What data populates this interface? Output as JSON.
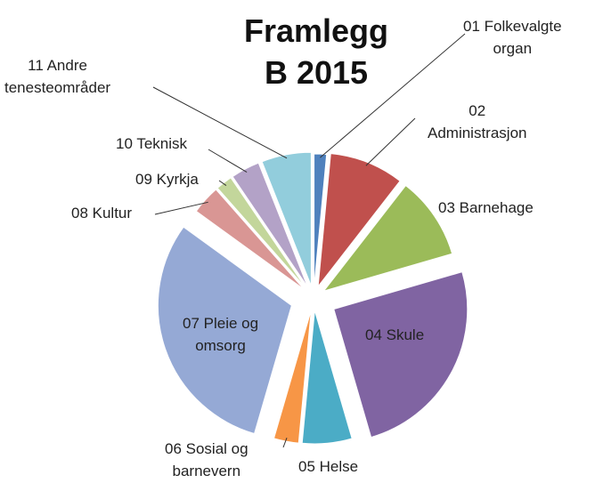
{
  "chart_data": {
    "type": "pie",
    "title": "Framlegg\nB 2015",
    "categories": [
      "01 Folkevalgte\norgan",
      "02\nAdministrasjon",
      "03 Barnehage",
      "04 Skule",
      "05 Helse",
      "06 Sosial og\nbarnevern",
      "07 Pleie og\nomsorg",
      "08 Kultur",
      "09 Kyrkja",
      "10 Teknisk",
      "11 Andre\ntenesteområder"
    ],
    "values": [
      1.5,
      9,
      10,
      25,
      6,
      3,
      30.5,
      3.5,
      2,
      3.5,
      6
    ],
    "colors": [
      "#4f81bd",
      "#c0504d",
      "#9bbb59",
      "#8064a2",
      "#4bacc6",
      "#f79646",
      "#95a9d5",
      "#d99694",
      "#c3d69b",
      "#b3a2c7",
      "#92cddc"
    ]
  }
}
